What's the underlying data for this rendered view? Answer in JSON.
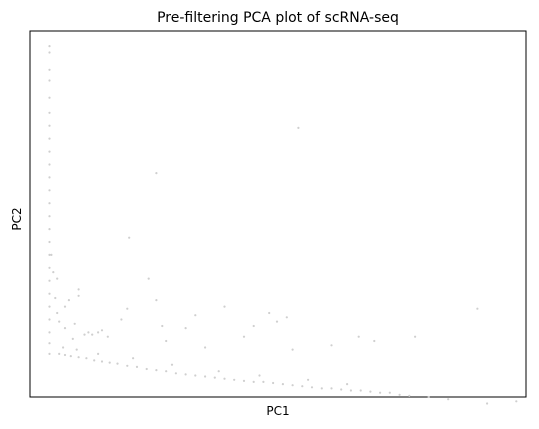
{
  "chart_data": {
    "type": "scatter",
    "title": "Pre-filtering PCA plot of scRNA-seq",
    "xlabel": "PC1",
    "ylabel": "PC2",
    "xlim": [
      -0.5,
      25
    ],
    "ylim": [
      -2,
      15
    ],
    "grid": false,
    "ticks": false,
    "point_color": "#cfcfcf",
    "series": [
      {
        "values": [
          [
            0.5,
            14.3
          ],
          [
            0.5,
            14.0
          ],
          [
            0.5,
            13.2
          ],
          [
            0.5,
            12.7
          ],
          [
            0.5,
            11.9
          ],
          [
            0.5,
            11.2
          ],
          [
            0.5,
            10.6
          ],
          [
            0.5,
            10.0
          ],
          [
            0.5,
            9.4
          ],
          [
            0.5,
            8.8
          ],
          [
            0.5,
            8.2
          ],
          [
            0.5,
            7.6
          ],
          [
            0.5,
            7.0
          ],
          [
            0.5,
            6.4
          ],
          [
            0.5,
            5.8
          ],
          [
            0.5,
            5.2
          ],
          [
            0.5,
            4.6
          ],
          [
            0.5,
            4.0
          ],
          [
            0.5,
            3.4
          ],
          [
            0.5,
            2.8
          ],
          [
            0.5,
            2.2
          ],
          [
            0.5,
            1.6
          ],
          [
            0.5,
            1.0
          ],
          [
            0.5,
            0.5
          ],
          [
            0.5,
            0.0
          ],
          [
            0.6,
            4.6
          ],
          [
            0.7,
            3.8
          ],
          [
            0.9,
            3.5
          ],
          [
            0.8,
            2.6
          ],
          [
            0.9,
            1.9
          ],
          [
            1.0,
            1.5
          ],
          [
            1.3,
            1.2
          ],
          [
            1.3,
            2.2
          ],
          [
            1.5,
            2.5
          ],
          [
            1.8,
            1.4
          ],
          [
            2.0,
            3.0
          ],
          [
            2.0,
            2.7
          ],
          [
            1.7,
            0.7
          ],
          [
            2.3,
            0.9
          ],
          [
            2.5,
            1.0
          ],
          [
            2.7,
            0.9
          ],
          [
            3.0,
            1.0
          ],
          [
            3.2,
            1.1
          ],
          [
            3.5,
            0.8
          ],
          [
            4.2,
            1.6
          ],
          [
            4.5,
            2.1
          ],
          [
            4.6,
            5.4
          ],
          [
            5.6,
            3.5
          ],
          [
            6.0,
            8.4
          ],
          [
            6.0,
            2.5
          ],
          [
            6.5,
            0.6
          ],
          [
            6.3,
            1.3
          ],
          [
            7.5,
            1.2
          ],
          [
            8.5,
            0.3
          ],
          [
            8.0,
            1.8
          ],
          [
            9.5,
            2.2
          ],
          [
            10.5,
            0.8
          ],
          [
            11.0,
            1.3
          ],
          [
            11.8,
            1.9
          ],
          [
            12.2,
            1.5
          ],
          [
            12.7,
            1.7
          ],
          [
            13.3,
            10.5
          ],
          [
            13.0,
            0.2
          ],
          [
            15.0,
            0.4
          ],
          [
            16.4,
            0.8
          ],
          [
            17.2,
            0.6
          ],
          [
            19.3,
            0.8
          ],
          [
            22.5,
            2.1
          ],
          [
            1.0,
            0.0
          ],
          [
            1.3,
            -0.05
          ],
          [
            1.6,
            -0.1
          ],
          [
            2.0,
            -0.15
          ],
          [
            2.4,
            -0.2
          ],
          [
            2.8,
            -0.3
          ],
          [
            3.2,
            -0.35
          ],
          [
            3.6,
            -0.4
          ],
          [
            4.0,
            -0.45
          ],
          [
            4.5,
            -0.55
          ],
          [
            5.0,
            -0.6
          ],
          [
            5.5,
            -0.7
          ],
          [
            6.0,
            -0.75
          ],
          [
            6.5,
            -0.8
          ],
          [
            7.0,
            -0.9
          ],
          [
            7.5,
            -0.95
          ],
          [
            8.0,
            -1.0
          ],
          [
            8.5,
            -1.05
          ],
          [
            9.0,
            -1.1
          ],
          [
            9.5,
            -1.15
          ],
          [
            10.0,
            -1.2
          ],
          [
            10.5,
            -1.25
          ],
          [
            11.0,
            -1.3
          ],
          [
            11.5,
            -1.3
          ],
          [
            12.0,
            -1.35
          ],
          [
            12.5,
            -1.4
          ],
          [
            13.0,
            -1.45
          ],
          [
            13.5,
            -1.5
          ],
          [
            14.0,
            -1.55
          ],
          [
            14.5,
            -1.6
          ],
          [
            15.0,
            -1.6
          ],
          [
            15.5,
            -1.65
          ],
          [
            16.0,
            -1.7
          ],
          [
            16.5,
            -1.7
          ],
          [
            17.0,
            -1.75
          ],
          [
            17.5,
            -1.8
          ],
          [
            18.0,
            -1.8
          ],
          [
            18.5,
            -1.9
          ],
          [
            19.0,
            -1.95
          ],
          [
            20.0,
            -2.0
          ],
          [
            21.0,
            -2.1
          ],
          [
            23.0,
            -2.3
          ],
          [
            24.5,
            -2.2
          ],
          [
            1.2,
            0.3
          ],
          [
            1.9,
            0.2
          ],
          [
            3.0,
            0.0
          ],
          [
            4.8,
            -0.2
          ],
          [
            6.8,
            -0.5
          ],
          [
            9.2,
            -0.8
          ],
          [
            11.3,
            -1.0
          ],
          [
            13.8,
            -1.2
          ],
          [
            15.8,
            -1.4
          ]
        ]
      }
    ]
  }
}
